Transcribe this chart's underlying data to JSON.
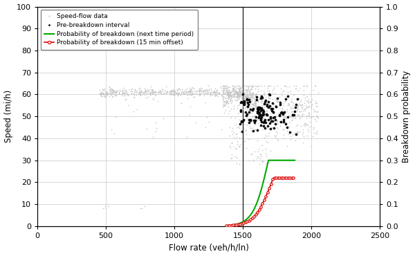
{
  "xlabel": "Flow rate (veh/h/ln)",
  "ylabel_left": "Speed (mi/h)",
  "ylabel_right": "Breakdown probability",
  "xlim": [
    0,
    2500
  ],
  "ylim_left": [
    0,
    100
  ],
  "ylim_right": [
    0,
    1.0
  ],
  "xticks": [
    0,
    500,
    1000,
    1500,
    2000,
    2500
  ],
  "yticks_left": [
    0,
    10,
    20,
    30,
    40,
    50,
    60,
    70,
    80,
    90,
    100
  ],
  "yticks_right": [
    0.0,
    0.1,
    0.2,
    0.3,
    0.4,
    0.5,
    0.6,
    0.7,
    0.8,
    0.9,
    1.0
  ],
  "vline_x": 1500,
  "legend": {
    "speed_flow": "Speed-flow data",
    "pre_breakdown": "Pre-breakdown interval",
    "prob_next": "Probability of breakdown (next time period)",
    "prob_15min": "Probability of breakdown (15 min offset)"
  },
  "grey_color": "#c0c0c0",
  "black_color": "#000000",
  "green_color": "#00aa00",
  "red_color": "#dd0000",
  "background_color": "#ffffff",
  "grid_color": "#c8c8c8"
}
